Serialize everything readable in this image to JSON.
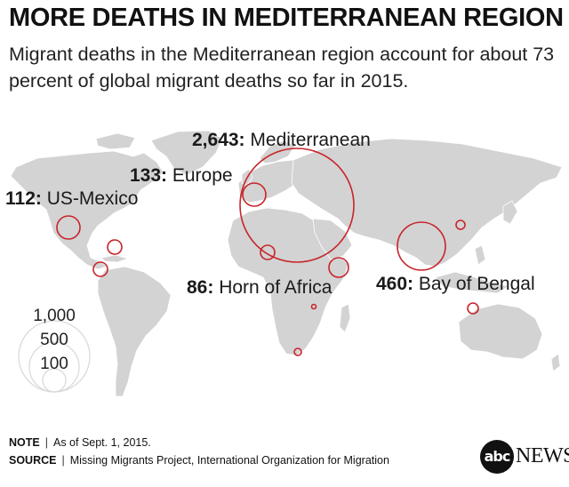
{
  "title": "MORE DEATHS IN MEDITERRANEAN REGION",
  "subtitle": "Migrant deaths in the Mediterranean region account for about 73 percent of global migrant deaths so far in 2015.",
  "labels": [
    {
      "value": "2,643:",
      "name": "Mediterranean"
    },
    {
      "value": "133:",
      "name": "Europe"
    },
    {
      "value": "112:",
      "name": "US-Mexico"
    },
    {
      "value": "86:",
      "name": "Horn of Africa"
    },
    {
      "value": "460:",
      "name": "Bay of Bengal"
    }
  ],
  "legend": [
    "1,000",
    "500",
    "100"
  ],
  "footer": {
    "note_label": "NOTE",
    "note_text": "As of Sept. 1, 2015.",
    "source_label": "SOURCE",
    "source_text": "Missing Migrants Project, International Organization for Migration"
  },
  "logo": {
    "mark": "abc",
    "text": "NEWS"
  },
  "colors": {
    "circle": "#c8242b",
    "land": "#d3d3d3",
    "text": "#222222"
  }
}
